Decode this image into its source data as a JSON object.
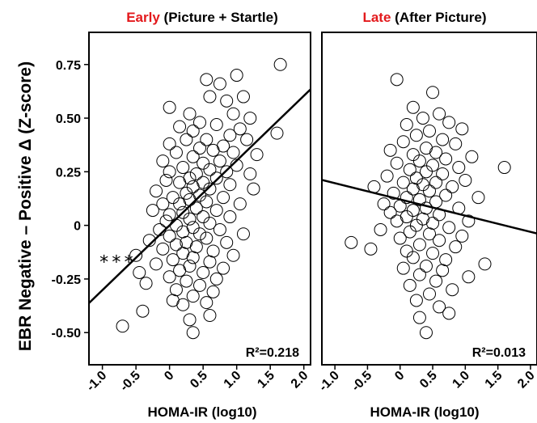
{
  "figure": {
    "ylabel": "EBR Negative – Positive Δ (Z-score)"
  },
  "chart_data": [
    {
      "type": "scatter",
      "title_accent": "Early",
      "title_rest": " (Picture + Startle)",
      "xlabel": "HOMA-IR (log10)",
      "xlim": [
        -1.2,
        2.1
      ],
      "ylim": [
        -0.65,
        0.9
      ],
      "xticks": [
        "-1.0",
        "-0.5",
        "0",
        "0.5",
        "1.0",
        "1.5",
        "2.0"
      ],
      "yticks": [
        "0.75",
        "0.50",
        "0.25",
        "0",
        "-0.25",
        "-0.50"
      ],
      "r2": "R²=0.218",
      "significance": "***",
      "fit": {
        "slope": 0.302,
        "intercept": -0.0
      },
      "points": [
        {
          "x": 1.65,
          "y": 0.75
        },
        {
          "x": 1.0,
          "y": 0.7
        },
        {
          "x": 0.55,
          "y": 0.68
        },
        {
          "x": 0.75,
          "y": 0.66
        },
        {
          "x": 1.1,
          "y": 0.6
        },
        {
          "x": 0.6,
          "y": 0.6
        },
        {
          "x": 0.85,
          "y": 0.58
        },
        {
          "x": 0.0,
          "y": 0.55
        },
        {
          "x": 0.3,
          "y": 0.52
        },
        {
          "x": 0.95,
          "y": 0.52
        },
        {
          "x": 1.2,
          "y": 0.5
        },
        {
          "x": 0.45,
          "y": 0.48
        },
        {
          "x": 0.7,
          "y": 0.47
        },
        {
          "x": 0.15,
          "y": 0.46
        },
        {
          "x": 1.05,
          "y": 0.45
        },
        {
          "x": 1.6,
          "y": 0.43
        },
        {
          "x": 0.35,
          "y": 0.44
        },
        {
          "x": 0.9,
          "y": 0.42
        },
        {
          "x": 0.55,
          "y": 0.4
        },
        {
          "x": 0.25,
          "y": 0.4
        },
        {
          "x": 1.15,
          "y": 0.4
        },
        {
          "x": 0.0,
          "y": 0.38
        },
        {
          "x": 0.8,
          "y": 0.37
        },
        {
          "x": 0.45,
          "y": 0.36
        },
        {
          "x": 0.65,
          "y": 0.35
        },
        {
          "x": 0.95,
          "y": 0.34
        },
        {
          "x": 0.1,
          "y": 0.34
        },
        {
          "x": 1.3,
          "y": 0.33
        },
        {
          "x": 0.35,
          "y": 0.32
        },
        {
          "x": 0.75,
          "y": 0.3
        },
        {
          "x": -0.1,
          "y": 0.3
        },
        {
          "x": 0.5,
          "y": 0.29
        },
        {
          "x": 1.0,
          "y": 0.28
        },
        {
          "x": 0.2,
          "y": 0.27
        },
        {
          "x": 0.6,
          "y": 0.26
        },
        {
          "x": 0.85,
          "y": 0.25
        },
        {
          "x": 0.0,
          "y": 0.25
        },
        {
          "x": 0.4,
          "y": 0.24
        },
        {
          "x": 1.2,
          "y": 0.24
        },
        {
          "x": 0.3,
          "y": 0.22
        },
        {
          "x": 0.7,
          "y": 0.22
        },
        {
          "x": -0.05,
          "y": 0.21
        },
        {
          "x": 0.5,
          "y": 0.2
        },
        {
          "x": 0.15,
          "y": 0.2
        },
        {
          "x": 0.9,
          "y": 0.19
        },
        {
          "x": 0.35,
          "y": 0.18
        },
        {
          "x": 0.6,
          "y": 0.17
        },
        {
          "x": 1.25,
          "y": 0.17
        },
        {
          "x": -0.2,
          "y": 0.16
        },
        {
          "x": 0.25,
          "y": 0.15
        },
        {
          "x": 0.45,
          "y": 0.14
        },
        {
          "x": 0.05,
          "y": 0.13
        },
        {
          "x": 0.8,
          "y": 0.13
        },
        {
          "x": 0.3,
          "y": 0.12
        },
        {
          "x": 0.55,
          "y": 0.11
        },
        {
          "x": -0.1,
          "y": 0.1
        },
        {
          "x": 0.15,
          "y": 0.1
        },
        {
          "x": 1.05,
          "y": 0.1
        },
        {
          "x": 0.4,
          "y": 0.08
        },
        {
          "x": 0.7,
          "y": 0.07
        },
        {
          "x": -0.25,
          "y": 0.07
        },
        {
          "x": 0.2,
          "y": 0.06
        },
        {
          "x": 0.0,
          "y": 0.05
        },
        {
          "x": 0.5,
          "y": 0.04
        },
        {
          "x": 0.9,
          "y": 0.04
        },
        {
          "x": 0.3,
          "y": 0.03
        },
        {
          "x": -0.05,
          "y": 0.02
        },
        {
          "x": 0.6,
          "y": 0.01
        },
        {
          "x": 0.1,
          "y": 0.0
        },
        {
          "x": 0.35,
          "y": -0.01
        },
        {
          "x": -0.15,
          "y": -0.02
        },
        {
          "x": 0.75,
          "y": -0.02
        },
        {
          "x": 0.2,
          "y": -0.03
        },
        {
          "x": 0.45,
          "y": -0.04
        },
        {
          "x": 1.1,
          "y": -0.04
        },
        {
          "x": 0.0,
          "y": -0.05
        },
        {
          "x": 0.55,
          "y": -0.06
        },
        {
          "x": -0.3,
          "y": -0.07
        },
        {
          "x": 0.25,
          "y": -0.08
        },
        {
          "x": 0.85,
          "y": -0.08
        },
        {
          "x": 0.1,
          "y": -0.09
        },
        {
          "x": 0.4,
          "y": -0.1
        },
        {
          "x": -0.1,
          "y": -0.11
        },
        {
          "x": 0.65,
          "y": -0.12
        },
        {
          "x": 0.2,
          "y": -0.13
        },
        {
          "x": 0.95,
          "y": -0.14
        },
        {
          "x": -0.5,
          "y": -0.14
        },
        {
          "x": 0.35,
          "y": -0.15
        },
        {
          "x": 0.05,
          "y": -0.16
        },
        {
          "x": 0.6,
          "y": -0.17
        },
        {
          "x": -0.2,
          "y": -0.18
        },
        {
          "x": 0.3,
          "y": -0.19
        },
        {
          "x": 0.8,
          "y": -0.2
        },
        {
          "x": 0.15,
          "y": -0.21
        },
        {
          "x": -0.45,
          "y": -0.22
        },
        {
          "x": 0.5,
          "y": -0.22
        },
        {
          "x": 0.0,
          "y": -0.24
        },
        {
          "x": 0.7,
          "y": -0.25
        },
        {
          "x": 0.25,
          "y": -0.26
        },
        {
          "x": -0.35,
          "y": -0.27
        },
        {
          "x": 0.45,
          "y": -0.28
        },
        {
          "x": 0.1,
          "y": -0.3
        },
        {
          "x": 0.65,
          "y": -0.31
        },
        {
          "x": 0.35,
          "y": -0.33
        },
        {
          "x": 0.05,
          "y": -0.35
        },
        {
          "x": 0.55,
          "y": -0.36
        },
        {
          "x": 0.2,
          "y": -0.37
        },
        {
          "x": -0.4,
          "y": -0.4
        },
        {
          "x": 0.3,
          "y": -0.44
        },
        {
          "x": -0.7,
          "y": -0.47
        },
        {
          "x": 0.35,
          "y": -0.5
        },
        {
          "x": 0.6,
          "y": -0.42
        }
      ]
    },
    {
      "type": "scatter",
      "title_accent": "Late",
      "title_rest": " (After Picture)",
      "xlabel": "HOMA-IR (log10)",
      "xlim": [
        -1.2,
        2.1
      ],
      "ylim": [
        -0.65,
        0.9
      ],
      "xticks": [
        "-1.0",
        "-0.5",
        "0",
        "0.5",
        "1.0",
        "1.5",
        "2.0"
      ],
      "yticks": [
        "0.75",
        "0.50",
        "0.25",
        "0",
        "-0.25",
        "-0.50"
      ],
      "r2": "R²=0.013",
      "fit": {
        "slope": -0.0757,
        "intercept": 0.121
      },
      "points": [
        {
          "x": -0.05,
          "y": 0.68
        },
        {
          "x": 0.5,
          "y": 0.62
        },
        {
          "x": 0.2,
          "y": 0.55
        },
        {
          "x": 0.6,
          "y": 0.52
        },
        {
          "x": 0.35,
          "y": 0.5
        },
        {
          "x": 0.75,
          "y": 0.48
        },
        {
          "x": 0.1,
          "y": 0.47
        },
        {
          "x": 0.95,
          "y": 0.45
        },
        {
          "x": 0.45,
          "y": 0.44
        },
        {
          "x": 0.25,
          "y": 0.42
        },
        {
          "x": 0.65,
          "y": 0.4
        },
        {
          "x": 0.05,
          "y": 0.39
        },
        {
          "x": 0.85,
          "y": 0.38
        },
        {
          "x": 0.4,
          "y": 0.36
        },
        {
          "x": -0.15,
          "y": 0.35
        },
        {
          "x": 0.55,
          "y": 0.34
        },
        {
          "x": 0.2,
          "y": 0.33
        },
        {
          "x": 1.1,
          "y": 0.32
        },
        {
          "x": 0.7,
          "y": 0.31
        },
        {
          "x": 0.3,
          "y": 0.3
        },
        {
          "x": -0.05,
          "y": 0.29
        },
        {
          "x": 0.5,
          "y": 0.28
        },
        {
          "x": 0.9,
          "y": 0.27
        },
        {
          "x": 1.6,
          "y": 0.27
        },
        {
          "x": 0.15,
          "y": 0.26
        },
        {
          "x": 0.4,
          "y": 0.25
        },
        {
          "x": 0.65,
          "y": 0.24
        },
        {
          "x": -0.2,
          "y": 0.23
        },
        {
          "x": 0.25,
          "y": 0.22
        },
        {
          "x": 1.0,
          "y": 0.21
        },
        {
          "x": 0.55,
          "y": 0.2
        },
        {
          "x": 0.05,
          "y": 0.2
        },
        {
          "x": 0.35,
          "y": 0.19
        },
        {
          "x": -0.4,
          "y": 0.18
        },
        {
          "x": 0.8,
          "y": 0.18
        },
        {
          "x": 0.2,
          "y": 0.17
        },
        {
          "x": 0.45,
          "y": 0.16
        },
        {
          "x": -0.1,
          "y": 0.15
        },
        {
          "x": 0.7,
          "y": 0.14
        },
        {
          "x": 0.1,
          "y": 0.13
        },
        {
          "x": 1.2,
          "y": 0.13
        },
        {
          "x": 0.3,
          "y": 0.12
        },
        {
          "x": 0.55,
          "y": 0.11
        },
        {
          "x": -0.25,
          "y": 0.1
        },
        {
          "x": 0.0,
          "y": 0.09
        },
        {
          "x": 0.4,
          "y": 0.08
        },
        {
          "x": 0.9,
          "y": 0.08
        },
        {
          "x": 0.2,
          "y": 0.07
        },
        {
          "x": -0.15,
          "y": 0.06
        },
        {
          "x": 0.6,
          "y": 0.05
        },
        {
          "x": 0.1,
          "y": 0.04
        },
        {
          "x": 0.35,
          "y": 0.03
        },
        {
          "x": 1.05,
          "y": 0.02
        },
        {
          "x": -0.05,
          "y": 0.02
        },
        {
          "x": 0.5,
          "y": 0.01
        },
        {
          "x": 0.25,
          "y": 0.0
        },
        {
          "x": 0.75,
          "y": -0.01
        },
        {
          "x": -0.3,
          "y": -0.02
        },
        {
          "x": 0.15,
          "y": -0.03
        },
        {
          "x": 0.45,
          "y": -0.04
        },
        {
          "x": 0.95,
          "y": -0.05
        },
        {
          "x": 0.0,
          "y": -0.06
        },
        {
          "x": 0.6,
          "y": -0.07
        },
        {
          "x": -0.75,
          "y": -0.08
        },
        {
          "x": 0.3,
          "y": -0.09
        },
        {
          "x": 0.85,
          "y": -0.1
        },
        {
          "x": -0.45,
          "y": -0.11
        },
        {
          "x": 0.1,
          "y": -0.12
        },
        {
          "x": 0.5,
          "y": -0.13
        },
        {
          "x": 0.2,
          "y": -0.15
        },
        {
          "x": 0.7,
          "y": -0.16
        },
        {
          "x": 1.3,
          "y": -0.18
        },
        {
          "x": 0.4,
          "y": -0.19
        },
        {
          "x": 0.05,
          "y": -0.2
        },
        {
          "x": 0.65,
          "y": -0.21
        },
        {
          "x": 0.3,
          "y": -0.23
        },
        {
          "x": 1.05,
          "y": -0.24
        },
        {
          "x": 0.55,
          "y": -0.26
        },
        {
          "x": 0.15,
          "y": -0.28
        },
        {
          "x": 0.8,
          "y": -0.3
        },
        {
          "x": 0.45,
          "y": -0.32
        },
        {
          "x": 0.25,
          "y": -0.35
        },
        {
          "x": 0.6,
          "y": -0.38
        },
        {
          "x": 0.75,
          "y": -0.41
        },
        {
          "x": 0.3,
          "y": -0.43
        },
        {
          "x": 0.4,
          "y": -0.5
        }
      ]
    }
  ]
}
